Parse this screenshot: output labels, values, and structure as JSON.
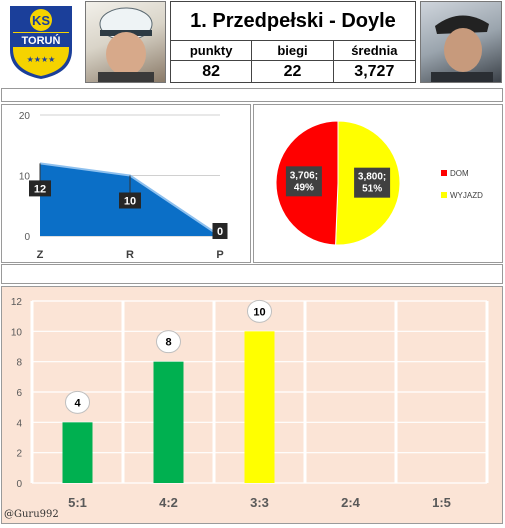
{
  "header": {
    "title": "1. Przedpełski - Doyle",
    "stats": [
      {
        "label": "punkty",
        "value": "82"
      },
      {
        "label": "biegi",
        "value": "22"
      },
      {
        "label": "średnia",
        "value": "3,727"
      }
    ],
    "logo": {
      "line1": "KS",
      "line2": "TORUŃ",
      "stars": "★★★★"
    }
  },
  "colors": {
    "area_fill": "#0b6fc7",
    "area_top": "#8ec0ee",
    "pie_dom": "#ff0000",
    "pie_wyjazd": "#ffff00",
    "bar_green": "#00b050",
    "bar_yellow": "#ffff00",
    "bar_bg": "#fbe4d6",
    "logo_blue": "#1b3f9a",
    "logo_yellow": "#f5d300"
  },
  "credit": "@Guru992",
  "chart_data": [
    {
      "type": "area",
      "categories": [
        "Z",
        "R",
        "P"
      ],
      "values": [
        12,
        10,
        0
      ],
      "ylim": [
        0,
        20
      ],
      "yticks": [
        0,
        10,
        20
      ],
      "grid": true
    },
    {
      "type": "pie",
      "slices": [
        {
          "name": "DOM",
          "value": 3.706,
          "label": "3,706;\n49%"
        },
        {
          "name": "WYJAZD",
          "value": 3.8,
          "label": "3,800;\n51%"
        }
      ],
      "legend": "right"
    },
    {
      "type": "bar",
      "categories": [
        "5:1",
        "4:2",
        "3:3",
        "2:4",
        "1:5"
      ],
      "values": [
        4,
        8,
        10,
        0,
        0
      ],
      "ylim": [
        0,
        12
      ],
      "yticks": [
        0,
        2,
        4,
        6,
        8,
        10,
        12
      ],
      "grid": true
    }
  ]
}
